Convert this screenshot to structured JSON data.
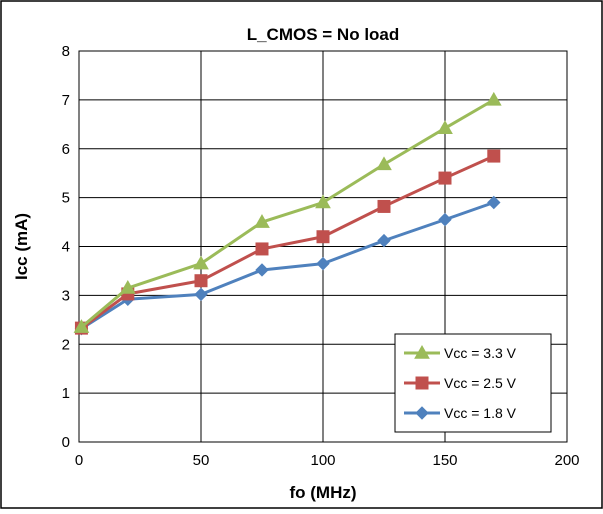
{
  "chart_data": {
    "type": "line",
    "title": "L_CMOS = No load",
    "xlabel": "fo (MHz)",
    "ylabel": "Icc (mA)",
    "xlim": [
      0,
      200
    ],
    "ylim": [
      0,
      8
    ],
    "x_ticks": [
      0,
      50,
      100,
      150,
      200
    ],
    "y_ticks": [
      0,
      1,
      2,
      3,
      4,
      5,
      6,
      7,
      8
    ],
    "grid": true,
    "legend_position": "bottom-right",
    "series": [
      {
        "name": "Vcc = 3.3 V",
        "color": "#9BBB59",
        "marker": "triangle",
        "x": [
          1,
          20,
          50,
          75,
          100,
          125,
          150,
          170
        ],
        "y": [
          2.35,
          3.15,
          3.65,
          4.5,
          4.9,
          5.68,
          6.42,
          7.0
        ]
      },
      {
        "name": "Vcc = 2.5 V",
        "color": "#C0504D",
        "marker": "square",
        "x": [
          1,
          20,
          50,
          75,
          100,
          125,
          150,
          170
        ],
        "y": [
          2.33,
          3.03,
          3.3,
          3.95,
          4.2,
          4.82,
          5.4,
          5.85
        ]
      },
      {
        "name": "Vcc = 1.8 V",
        "color": "#4F81BD",
        "marker": "diamond",
        "x": [
          1,
          20,
          50,
          75,
          100,
          125,
          150,
          170
        ],
        "y": [
          2.32,
          2.92,
          3.02,
          3.52,
          3.65,
          4.12,
          4.55,
          4.9
        ]
      }
    ]
  }
}
